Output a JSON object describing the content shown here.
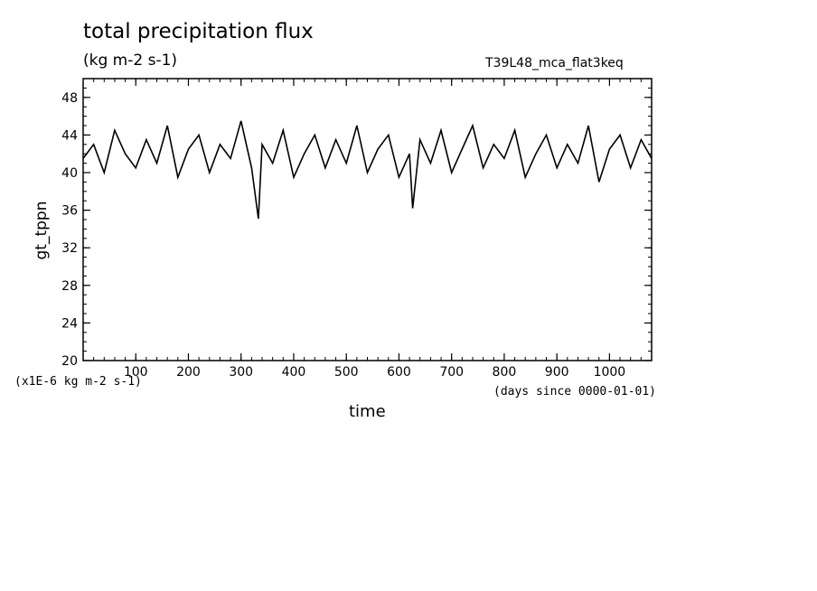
{
  "chart_data": {
    "type": "line",
    "title": "total precipitation flux",
    "units": "(kg m-2 s-1)",
    "experiment": "T39L48_mca_flat3keq",
    "xlabel": "time",
    "ylabel": "gt_tppn",
    "x_units": "(days since 0000-01-01)",
    "y_units": "(x1E-6 kg m-2 s-1)",
    "xlim": [
      0,
      1080
    ],
    "ylim": [
      20,
      50
    ],
    "x_ticks": [
      100,
      200,
      300,
      400,
      500,
      600,
      700,
      800,
      900,
      1000
    ],
    "y_ticks": [
      20,
      24,
      28,
      32,
      36,
      40,
      44,
      48
    ],
    "grid": false,
    "legend": "none",
    "series": [
      {
        "color": "#000000",
        "x": [
          0,
          20,
          40,
          60,
          80,
          100,
          120,
          140,
          160,
          180,
          200,
          220,
          240,
          260,
          280,
          300,
          320,
          333,
          340,
          360,
          380,
          400,
          420,
          440,
          460,
          480,
          500,
          520,
          540,
          560,
          580,
          600,
          620,
          626,
          640,
          660,
          680,
          700,
          720,
          740,
          760,
          780,
          800,
          820,
          840,
          860,
          880,
          900,
          920,
          940,
          960,
          980,
          1000,
          1020,
          1040,
          1060,
          1080
        ],
        "y": [
          41.5,
          43.0,
          40.0,
          44.5,
          42.0,
          40.5,
          43.5,
          41.0,
          45.0,
          39.5,
          42.5,
          44.0,
          40.0,
          43.0,
          41.5,
          45.5,
          40.5,
          35.1,
          43.0,
          41.0,
          44.5,
          39.5,
          42.0,
          44.0,
          40.5,
          43.5,
          41.0,
          45.0,
          40.0,
          42.5,
          44.0,
          39.5,
          42.0,
          36.2,
          43.5,
          41.0,
          44.5,
          40.0,
          42.5,
          45.0,
          40.5,
          43.0,
          41.5,
          44.5,
          39.5,
          42.0,
          44.0,
          40.5,
          43.0,
          41.0,
          45.0,
          39.0,
          42.5,
          44.0,
          40.5,
          43.5,
          41.5
        ]
      }
    ]
  }
}
